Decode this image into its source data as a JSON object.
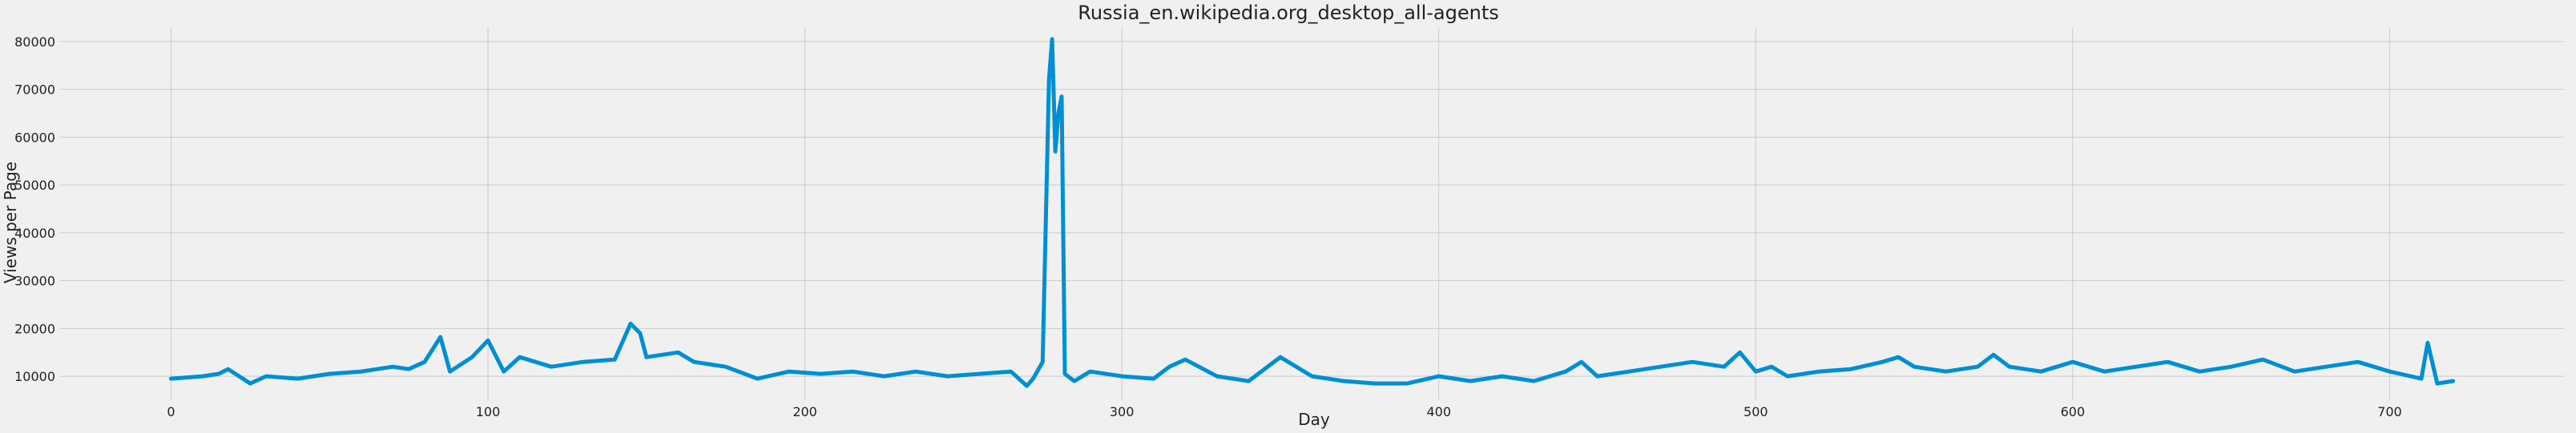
{
  "chart_data": {
    "type": "line",
    "title": "Russia_en.wikipedia.org_desktop_all-agents",
    "xlabel": "Day",
    "ylabel": "Views per Page",
    "xlim": [
      -35,
      755
    ],
    "ylim": [
      5000,
      83000
    ],
    "xticks": [
      0,
      100,
      200,
      300,
      400,
      500,
      600,
      700
    ],
    "yticks": [
      10000,
      20000,
      30000,
      40000,
      50000,
      60000,
      70000,
      80000
    ],
    "grid": true,
    "color": "#008fd5",
    "series": [
      {
        "x": [
          0,
          10,
          15,
          18,
          25,
          30,
          40,
          50,
          60,
          70,
          75,
          80,
          85,
          88,
          95,
          100,
          105,
          110,
          120,
          130,
          140,
          145,
          148,
          150,
          160,
          165,
          175,
          185,
          195,
          205,
          215,
          225,
          235,
          245,
          255,
          265,
          270,
          272,
          275,
          277,
          278,
          279,
          280,
          281,
          282,
          285,
          290,
          300,
          310,
          315,
          320,
          330,
          340,
          350,
          360,
          370,
          380,
          390,
          400,
          410,
          420,
          430,
          440,
          445,
          450,
          460,
          470,
          480,
          490,
          495,
          500,
          505,
          510,
          520,
          530,
          540,
          545,
          550,
          560,
          570,
          575,
          580,
          590,
          600,
          610,
          620,
          630,
          640,
          650,
          660,
          670,
          680,
          690,
          700,
          710,
          712,
          715,
          720
        ],
        "y": [
          9500,
          10000,
          10500,
          11500,
          8500,
          10000,
          9500,
          10500,
          11000,
          12000,
          11500,
          13000,
          18200,
          11000,
          14000,
          17500,
          11000,
          14000,
          12000,
          13000,
          13500,
          21000,
          19000,
          14000,
          15000,
          13000,
          12000,
          9500,
          11000,
          10500,
          11000,
          10000,
          11000,
          10000,
          10500,
          11000,
          8000,
          9500,
          13000,
          72000,
          80500,
          57000,
          65000,
          68500,
          10500,
          9000,
          11000,
          10000,
          9500,
          12000,
          13500,
          10000,
          9000,
          14000,
          10000,
          9000,
          8500,
          8500,
          10000,
          9000,
          10000,
          9000,
          11000,
          13000,
          10000,
          11000,
          12000,
          13000,
          12000,
          15000,
          11000,
          12000,
          10000,
          11000,
          11500,
          13000,
          14000,
          12000,
          11000,
          12000,
          14500,
          12000,
          11000,
          13000,
          11000,
          12000,
          13000,
          11000,
          12000,
          13500,
          11000,
          12000,
          13000,
          11000,
          9500,
          17000,
          8500,
          9000
        ]
      }
    ]
  }
}
